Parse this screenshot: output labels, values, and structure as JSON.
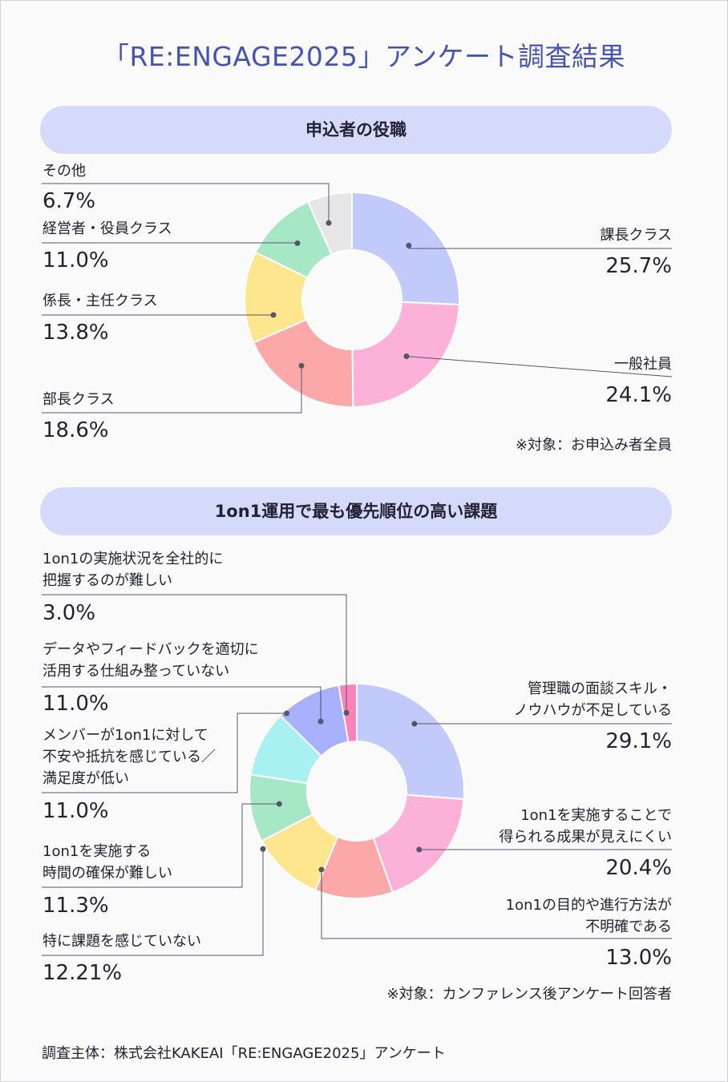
{
  "title": "「RE:ENGAGE2025」アンケート調査結果",
  "footer": "調査主体：株式会社KAKEAI「RE:ENGAGE2025」アンケート",
  "colors": {
    "title": "#4553b5",
    "pill": "#d5dafa",
    "blue": "#c2c9fb",
    "pink": "#fbb1d8",
    "salmon": "#fca8a8",
    "yellow": "#fde68e",
    "green": "#a6e8c6",
    "gray": "#e6e6e9",
    "cyan": "#a9f0f2",
    "indigo": "#a8b1fb",
    "magenta": "#fb82bb"
  },
  "chart_data": [
    {
      "type": "pie",
      "title": "申込者の役職",
      "note": "※対象：お申込み者全員",
      "slices": [
        {
          "label": "課長クラス",
          "value": 25.7,
          "display": "25.7%",
          "color": "#c2c9fb"
        },
        {
          "label": "一般社員",
          "value": 24.1,
          "display": "24.1%",
          "color": "#fbb1d8"
        },
        {
          "label": "部長クラス",
          "value": 18.6,
          "display": "18.6%",
          "color": "#fca8a8"
        },
        {
          "label": "係長・主任クラス",
          "value": 13.8,
          "display": "13.8%",
          "color": "#fde68e"
        },
        {
          "label": "経営者・役員クラス",
          "value": 11.0,
          "display": "11.0%",
          "color": "#a6e8c6"
        },
        {
          "label": "その他",
          "value": 6.7,
          "display": "6.7%",
          "color": "#e6e6e9"
        }
      ]
    },
    {
      "type": "pie",
      "title": "1on1運用で最も優先順位の高い課題",
      "note": "※対象：カンファレンス後アンケート回答者",
      "slices": [
        {
          "label": "管理職の面談スキル・\nノウハウが不足している",
          "value": 29.1,
          "display": "29.1%",
          "color": "#c2c9fb"
        },
        {
          "label": "1on1を実施することで\n得られる成果が見えにくい",
          "value": 20.4,
          "display": "20.4%",
          "color": "#fbb1d8"
        },
        {
          "label": "1on1の目的や進行方法が\n不明確である",
          "value": 13.0,
          "display": "13.0%",
          "color": "#fca8a8"
        },
        {
          "label": "特に課題を感じていない",
          "value": 12.21,
          "display": "12.21%",
          "color": "#fde68e"
        },
        {
          "label": "1on1を実施する\n時間の確保が難しい",
          "value": 11.3,
          "display": "11.3%",
          "color": "#a6e8c6"
        },
        {
          "label": "メンバーが1on1に対して\n不安や抵抗を感じている／\n満足度が低い",
          "value": 11.0,
          "display": "11.0%",
          "color": "#a9f0f2"
        },
        {
          "label": "データやフィードバックを適切に\n活用する仕組み整っていない",
          "value": 11.0,
          "display": "11.0%",
          "color": "#a8b1fb"
        },
        {
          "label": "1on1の実施状況を全社的に\n把握するのが難しい",
          "value": 3.0,
          "display": "3.0%",
          "color": "#fb82bb"
        }
      ]
    }
  ]
}
